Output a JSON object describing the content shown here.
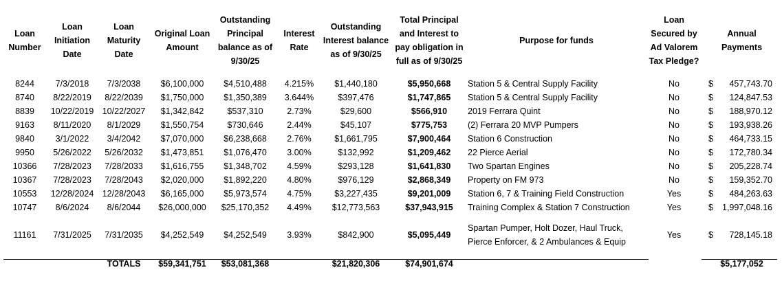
{
  "headers": [
    "Loan Number",
    "Loan Initiation Date",
    "Loan Maturity Date",
    "Original Loan Amount",
    "Outstanding Principal balance as of 9/30/25",
    "Interest Rate",
    "Outstanding Interest balance as of 9/30/25",
    "Total Principal and Interest to pay obligation in full as of 9/30/25",
    "Purpose for funds",
    "Loan Secured by Ad Valorem Tax Pledge?",
    "Annual Payments"
  ],
  "currency_symbol": "$",
  "rows": [
    {
      "number": "8244",
      "init": "7/3/2018",
      "maturity": "7/3/2038",
      "original": "$6,100,000",
      "principal": "$4,510,488",
      "rate": "4.215%",
      "interest": "$1,440,180",
      "total": "$5,950,668",
      "purpose": "Station 5 & Central Supply Facility",
      "pledge": "No",
      "payment": "457,743.70"
    },
    {
      "number": "8740",
      "init": "8/22/2019",
      "maturity": "8/22/2039",
      "original": "$1,750,000",
      "principal": "$1,350,389",
      "rate": "3.644%",
      "interest": "$397,476",
      "total": "$1,747,865",
      "purpose": "Station 5 & Central Supply Facility",
      "pledge": "No",
      "payment": "124,847.53"
    },
    {
      "number": "8839",
      "init": "10/22/2019",
      "maturity": "10/22/2027",
      "original": "$1,342,842",
      "principal": "$537,310",
      "rate": "2.73%",
      "interest": "$29,600",
      "total": "$566,910",
      "purpose": "2019 Ferrara Quint",
      "pledge": "No",
      "payment": "188,970.12"
    },
    {
      "number": "9163",
      "init": "8/11/2020",
      "maturity": "8/1/2029",
      "original": "$1,550,754",
      "principal": "$730,646",
      "rate": "2.44%",
      "interest": "$45,107",
      "total": "$775,753",
      "purpose": "(2) Ferrara 20 MVP Pumpers",
      "pledge": "No",
      "payment": "193,938.26"
    },
    {
      "number": "9840",
      "init": "3/1/2022",
      "maturity": "3/4/2042",
      "original": "$7,070,000",
      "principal": "$6,238,668",
      "rate": "2.76%",
      "interest": "$1,661,795",
      "total": "$7,900,464",
      "purpose": "Station 6 Construction",
      "pledge": "No",
      "payment": "464,733.15"
    },
    {
      "number": "9950",
      "init": "5/26/2022",
      "maturity": "5/26/2032",
      "original": "$1,473,851",
      "principal": "$1,076,470",
      "rate": "3.00%",
      "interest": "$132,992",
      "total": "$1,209,462",
      "purpose": "22 Pierce Aerial",
      "pledge": "No",
      "payment": "172,780.34"
    },
    {
      "number": "10366",
      "init": "7/28/2023",
      "maturity": "7/28/2033",
      "original": "$1,616,755",
      "principal": "$1,348,702",
      "rate": "4.59%",
      "interest": "$293,128",
      "total": "$1,641,830",
      "purpose": "Two Spartan Engines",
      "pledge": "No",
      "payment": "205,228.74"
    },
    {
      "number": "10367",
      "init": "7/28/2023",
      "maturity": "7/28/2043",
      "original": "$2,020,000",
      "principal": "$1,892,220",
      "rate": "4.80%",
      "interest": "$976,129",
      "total": "$2,868,349",
      "purpose": "Property on FM 973",
      "pledge": "No",
      "payment": "159,352.70"
    },
    {
      "number": "10553",
      "init": "12/28/2024",
      "maturity": "12/28/2043",
      "original": "$6,165,000",
      "principal": "$5,973,574",
      "rate": "4.75%",
      "interest": "$3,227,435",
      "total": "$9,201,009",
      "purpose": "Station 6, 7 & Training Field Construction",
      "pledge": "Yes",
      "payment": "484,263.63"
    },
    {
      "number": "10747",
      "init": "8/6/2024",
      "maturity": "8/6/2044",
      "original": "$26,000,000",
      "principal": "$25,170,352",
      "rate": "4.49%",
      "interest": "$12,773,563",
      "total": "$37,943,915",
      "purpose": "Training Complex & Station 7 Construction",
      "pledge": "Yes",
      "payment": "1,997,048.16"
    },
    {
      "number": "11161",
      "init": "7/31/2025",
      "maturity": "7/31/2035",
      "original": "$4,252,549",
      "principal": "$4,252,549",
      "rate": "3.93%",
      "interest": "$842,900",
      "total": "$5,095,449",
      "purpose": "Spartan Pumper, Holt Dozer, Haul Truck, Pierce Enforcer, & 2 Ambulances & Equip",
      "pledge": "Yes",
      "payment": "728,145.18"
    }
  ],
  "totals": {
    "label": "TOTALS",
    "original": "$59,341,751",
    "principal": "$53,081,368",
    "interest": "$21,820,306",
    "total": "$74,901,674",
    "payment": "$5,177,052"
  }
}
